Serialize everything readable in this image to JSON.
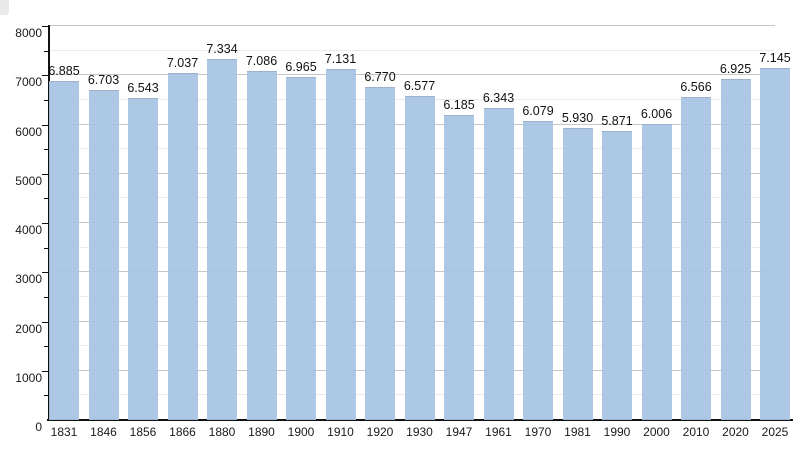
{
  "chart_data": {
    "type": "bar",
    "title": "",
    "xlabel": "",
    "ylabel": "",
    "categories": [
      "1831",
      "1846",
      "1856",
      "1866",
      "1880",
      "1890",
      "1900",
      "1910",
      "1920",
      "1930",
      "1947",
      "1961",
      "1970",
      "1981",
      "1990",
      "2000",
      "2010",
      "2020",
      "2025"
    ],
    "values": [
      6885,
      6703,
      6543,
      7037,
      7334,
      7086,
      6965,
      7131,
      6770,
      6577,
      6185,
      6343,
      6079,
      5930,
      5871,
      6006,
      6566,
      6925,
      7145
    ],
    "value_labels": [
      "6.885",
      "6.703",
      "6.543",
      "7.037",
      "7.334",
      "7.086",
      "6.965",
      "7.131",
      "6.770",
      "6.577",
      "6.185",
      "6.343",
      "6.079",
      "5.930",
      "5.871",
      "6.006",
      "6.566",
      "6.925",
      "7.145"
    ],
    "ylim": [
      0,
      8000
    ],
    "y_major_step": 1000,
    "y_minor_step": 500,
    "y_tick_labels": [
      "0",
      "1000",
      "2000",
      "3000",
      "4000",
      "5000",
      "6000",
      "7000",
      "8000"
    ],
    "grid": "major and minor horizontal gridlines",
    "legend_position": "none",
    "colors": {
      "bar_fill": "#a7c4e2",
      "bar_edge": "#9cb2cc",
      "major_grid": "#c6c6c6",
      "minor_grid": "#eaeaea",
      "axis": "#111111",
      "text": "#1a1a1a",
      "background": "#ffffff"
    }
  }
}
